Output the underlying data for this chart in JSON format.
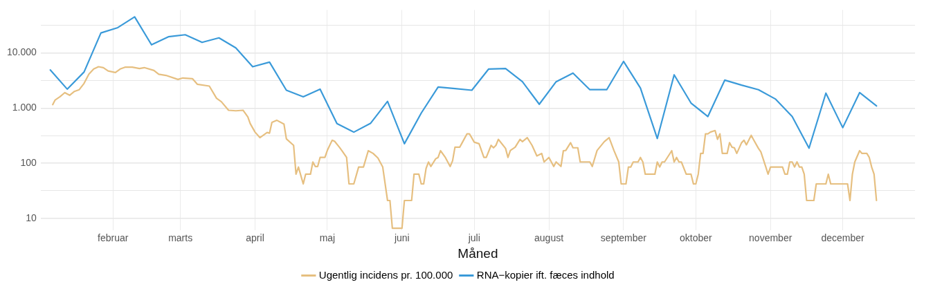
{
  "chart_data": {
    "type": "line",
    "xlabel": "Måned",
    "log": "y",
    "grid": true,
    "legend": "bottom",
    "marker": "none",
    "line_style": "solid",
    "xlim": [
      "--01-02",
      "--12-31"
    ],
    "xticks": [
      {
        "value": "--02-01",
        "label": "februar"
      },
      {
        "value": "--03-01",
        "label": "marts"
      },
      {
        "value": "--04-01",
        "label": "april"
      },
      {
        "value": "--05-01",
        "label": "maj"
      },
      {
        "value": "--06-01",
        "label": "juni"
      },
      {
        "value": "--07-01",
        "label": "juli"
      },
      {
        "value": "--08-01",
        "label": "august"
      },
      {
        "value": "--09-01",
        "label": "september"
      },
      {
        "value": "--10-01",
        "label": "oktober"
      },
      {
        "value": "--11-01",
        "label": "november"
      },
      {
        "value": "--12-01",
        "label": "december"
      }
    ],
    "ylim": [
      6,
      60000
    ],
    "yticks": [
      10,
      {
        "value": 31.6,
        "label": null
      },
      100,
      {
        "value": 316,
        "label": null
      },
      {
        "value": 1000,
        "label": "1.000"
      },
      {
        "value": 3162,
        "label": null
      },
      {
        "value": 10000,
        "label": "10.000"
      },
      {
        "value": 31623,
        "label": null
      }
    ],
    "series": [
      {
        "name": "Ugentlig incidens pr. 100.000",
        "color": "#e6bf80",
        "x": [
          "--01-07",
          "--01-08",
          "--01-10",
          "--01-12",
          "--01-14",
          "--01-16",
          "--01-18",
          "--01-20",
          "--01-22",
          "--01-24",
          "--01-26",
          "--01-28",
          "--01-30",
          "--02-02",
          "--02-04",
          "--02-06",
          "--02-09",
          "--02-12",
          "--02-14",
          "--02-18",
          "--02-20",
          "--02-23",
          "--02-28",
          "--03-02",
          "--03-06",
          "--03-08",
          "--03-13",
          "--03-16",
          "--03-18",
          "--03-21",
          "--03-24",
          "--03-27",
          "--03-29",
          "--03-30",
          "--04-01",
          "--04-03",
          "--04-06",
          "--04-07",
          "--04-08",
          "--04-10",
          "--04-13",
          "--04-14",
          "--04-17",
          "--04-18",
          "--04-19",
          "--04-21",
          "--04-22",
          "--04-24",
          "--04-25",
          "--04-26",
          "--04-27",
          "--04-28",
          "--04-30",
          "--05-01",
          "--05-03",
          "--05-04",
          "--05-06",
          "--05-07",
          "--05-09",
          "--05-10",
          "--05-12",
          "--05-14",
          "--05-16",
          "--05-18",
          "--05-20",
          "--05-22",
          "--05-24",
          "--05-26",
          "--05-27",
          "--05-28",
          "--06-01",
          "--06-02",
          "--06-05",
          "--06-06",
          "--06-08",
          "--06-09",
          "--06-10",
          "--06-11",
          "--06-12",
          "--06-13",
          "--06-15",
          "--06-16",
          "--06-17",
          "--06-19",
          "--06-21",
          "--06-22",
          "--06-23",
          "--06-25",
          "--06-26",
          "--06-28",
          "--06-29",
          "--07-01",
          "--07-03",
          "--07-05",
          "--07-06",
          "--07-08",
          "--07-09",
          "--07-10",
          "--07-11",
          "--07-14",
          "--07-15",
          "--07-16",
          "--07-18",
          "--07-20",
          "--07-21",
          "--07-23",
          "--07-25",
          "--07-27",
          "--07-29",
          "--07-30",
          "--08-01",
          "--08-03",
          "--08-04",
          "--08-06",
          "--08-07",
          "--08-08",
          "--08-10",
          "--08-11",
          "--08-13",
          "--08-14",
          "--08-18",
          "--08-19",
          "--08-21",
          "--08-24",
          "--08-26",
          "--08-28",
          "--08-30",
          "--08-31",
          "--09-02",
          "--09-03",
          "--09-04",
          "--09-05",
          "--09-07",
          "--09-08",
          "--09-09",
          "--09-10",
          "--09-14",
          "--09-15",
          "--09-16",
          "--09-17",
          "--09-18",
          "--09-21",
          "--09-22",
          "--09-23",
          "--09-24",
          "--09-25",
          "--09-27",
          "--09-29",
          "--09-30",
          "--10-01",
          "--10-02",
          "--10-03",
          "--10-04",
          "--10-05",
          "--10-06",
          "--10-07",
          "--10-09",
          "--10-10",
          "--10-11",
          "--10-12",
          "--10-14",
          "--10-15",
          "--10-16",
          "--10-17",
          "--10-18",
          "--10-20",
          "--10-21",
          "--10-22",
          "--10-24",
          "--10-25",
          "--10-27",
          "--10-28",
          "--10-30",
          "--10-31",
          "--11-01",
          "--11-06",
          "--11-07",
          "--11-08",
          "--11-09",
          "--11-10",
          "--11-11",
          "--11-12",
          "--11-13",
          "--11-14",
          "--11-15",
          "--11-16",
          "--11-19",
          "--11-20",
          "--11-24",
          "--11-25",
          "--11-26",
          "--12-03",
          "--12-04",
          "--12-05",
          "--12-06",
          "--12-08",
          "--12-09",
          "--12-11",
          "--12-12",
          "--12-13",
          "--12-14",
          "--12-15"
        ],
        "values": [
          1150,
          1400,
          1600,
          1900,
          1700,
          2000,
          2150,
          2800,
          4100,
          5100,
          5600,
          5400,
          4700,
          4400,
          5100,
          5500,
          5500,
          5200,
          5400,
          4800,
          4100,
          3900,
          3300,
          3500,
          3400,
          2700,
          2500,
          1500,
          1300,
          910,
          890,
          910,
          690,
          520,
          365,
          290,
          360,
          350,
          550,
          600,
          510,
          275,
          210,
          63,
          85,
          42,
          63,
          63,
          105,
          87,
          87,
          127,
          127,
          170,
          260,
          250,
          195,
          170,
          127,
          42,
          42,
          85,
          85,
          168,
          150,
          124,
          85,
          21,
          21,
          6.6,
          6.6,
          21,
          21,
          63,
          63,
          42,
          42,
          80,
          105,
          87,
          120,
          127,
          168,
          127,
          87,
          110,
          195,
          195,
          235,
          340,
          340,
          240,
          225,
          127,
          127,
          210,
          190,
          210,
          270,
          185,
          127,
          170,
          195,
          270,
          245,
          290,
          210,
          135,
          150,
          105,
          127,
          87,
          105,
          87,
          168,
          170,
          235,
          190,
          190,
          105,
          105,
          87,
          170,
          245,
          290,
          170,
          105,
          42,
          42,
          85,
          85,
          105,
          105,
          127,
          105,
          63,
          63,
          105,
          85,
          105,
          105,
          168,
          105,
          127,
          105,
          105,
          63,
          63,
          42,
          42,
          63,
          150,
          150,
          340,
          340,
          365,
          390,
          270,
          340,
          150,
          150,
          235,
          195,
          190,
          150,
          235,
          260,
          215,
          320,
          265,
          185,
          160,
          87,
          63,
          85,
          85,
          63,
          63,
          105,
          105,
          85,
          105,
          85,
          85,
          63,
          21,
          21,
          42,
          42,
          63,
          42,
          42,
          21,
          63,
          105,
          168,
          150,
          150,
          127,
          85,
          63,
          21
        ]
      },
      {
        "name": "RNA−kopier ift. fæces indhold",
        "color": "#3a9ad9",
        "x": [
          "--01-06",
          "--01-13",
          "--01-20",
          "--01-27",
          "--02-03",
          "--02-10",
          "--02-17",
          "--02-24",
          "--03-03",
          "--03-10",
          "--03-17",
          "--03-24",
          "--03-31",
          "--04-07",
          "--04-14",
          "--04-21",
          "--04-28",
          "--05-05",
          "--05-12",
          "--05-19",
          "--05-26",
          "--06-02",
          "--06-09",
          "--06-16",
          "--06-23",
          "--06-30",
          "--07-07",
          "--07-14",
          "--07-21",
          "--07-28",
          "--08-04",
          "--08-11",
          "--08-18",
          "--08-25",
          "--09-01",
          "--09-08",
          "--09-15",
          "--09-22",
          "--09-29",
          "--10-06",
          "--10-13",
          "--10-20",
          "--10-27",
          "--11-03",
          "--11-10",
          "--11-17",
          "--11-24",
          "--12-01",
          "--12-08",
          "--12-15"
        ],
        "values": [
          4900,
          2200,
          4500,
          23000,
          28700,
          45000,
          14000,
          19600,
          21300,
          15500,
          18700,
          12300,
          5600,
          6800,
          2100,
          1600,
          2200,
          520,
          365,
          530,
          1320,
          225,
          810,
          2400,
          2250,
          2100,
          5100,
          5200,
          3000,
          1170,
          3000,
          4300,
          2150,
          2150,
          7000,
          2300,
          280,
          4000,
          1230,
          700,
          3200,
          2600,
          2150,
          1460,
          700,
          187,
          1860,
          440,
          1900,
          1090
        ]
      }
    ]
  }
}
